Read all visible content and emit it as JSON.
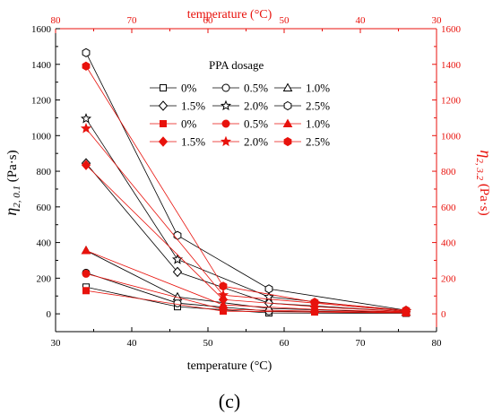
{
  "chart_data": {
    "type": "line",
    "panel_label": "(c)",
    "colors": {
      "left_series": "#000000",
      "right_series": "#e8120c"
    },
    "x_bottom": {
      "label": "temperature (°C)",
      "range": [
        30,
        80
      ],
      "ticks": [
        "30",
        "40",
        "50",
        "60",
        "70",
        "80"
      ]
    },
    "x_top": {
      "label": "temperature (°C)",
      "range": [
        80,
        30
      ],
      "ticks": [
        "80",
        "70",
        "60",
        "50",
        "40",
        "30"
      ]
    },
    "y_left": {
      "label_main": "η",
      "label_sub": "2, 0.1",
      "label_unit": " (Pa·s)",
      "range": [
        -100,
        1600
      ],
      "ticks": [
        "0",
        "200",
        "400",
        "600",
        "800",
        "1000",
        "1200",
        "1400",
        "1600"
      ]
    },
    "y_right": {
      "label_main": "η",
      "label_sub": "2, 3.2",
      "label_unit": " (Pa·s)",
      "range": [
        -100,
        1600
      ],
      "ticks": [
        "0",
        "200",
        "400",
        "600",
        "800",
        "1000",
        "1200",
        "1400",
        "1600"
      ]
    },
    "legend": {
      "title": "PPA dosage",
      "placement": "top-center"
    },
    "series_left": [
      {
        "name": "0%",
        "marker": "square",
        "x": [
          34,
          46,
          58,
          76
        ],
        "y": [
          150,
          40,
          5,
          3
        ]
      },
      {
        "name": "0.5%",
        "marker": "circle",
        "x": [
          34,
          46,
          58,
          76
        ],
        "y": [
          230,
          60,
          15,
          5
        ]
      },
      {
        "name": "1.0%",
        "marker": "triangle",
        "x": [
          34,
          46,
          58,
          76
        ],
        "y": [
          355,
          95,
          30,
          8
        ]
      },
      {
        "name": "1.5%",
        "marker": "diamond",
        "x": [
          34,
          46,
          58,
          76
        ],
        "y": [
          845,
          235,
          60,
          12
        ]
      },
      {
        "name": "2.0%",
        "marker": "star",
        "x": [
          34,
          46,
          58,
          76
        ],
        "y": [
          1095,
          305,
          95,
          15
        ]
      },
      {
        "name": "2.5%",
        "marker": "hexagon",
        "x": [
          34,
          46,
          58,
          76
        ],
        "y": [
          1465,
          440,
          140,
          20
        ]
      }
    ],
    "series_right": [
      {
        "name": "0%",
        "marker": "square",
        "x": [
          76,
          64,
          52,
          34
        ],
        "y": [
          5,
          10,
          15,
          130
        ]
      },
      {
        "name": "0.5%",
        "marker": "circle",
        "x": [
          76,
          64,
          52,
          34
        ],
        "y": [
          8,
          15,
          25,
          225
        ]
      },
      {
        "name": "1.0%",
        "marker": "triangle",
        "x": [
          76,
          64,
          52,
          34
        ],
        "y": [
          10,
          25,
          50,
          355
        ]
      },
      {
        "name": "1.5%",
        "marker": "diamond",
        "x": [
          76,
          64,
          52,
          34
        ],
        "y": [
          12,
          40,
          80,
          835
        ]
      },
      {
        "name": "2.0%",
        "marker": "star",
        "x": [
          76,
          64,
          52,
          34
        ],
        "y": [
          15,
          60,
          105,
          1040
        ]
      },
      {
        "name": "2.5%",
        "marker": "hexagon",
        "x": [
          76,
          64,
          52,
          34
        ],
        "y": [
          20,
          65,
          155,
          1390
        ]
      }
    ]
  }
}
